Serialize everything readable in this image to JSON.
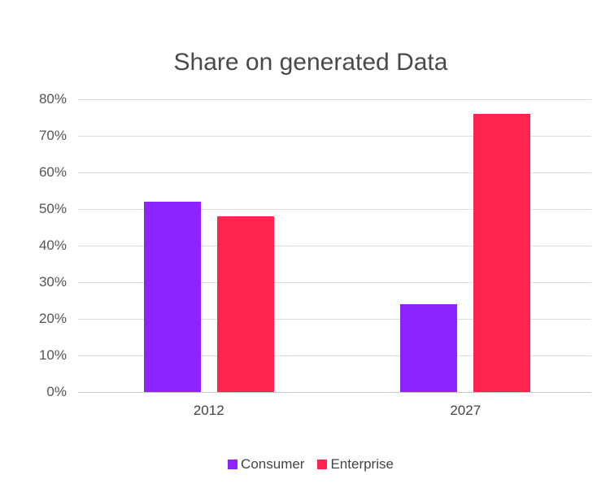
{
  "chart_data": {
    "type": "bar",
    "title": "Share on generated Data",
    "categories": [
      "2012",
      "2027"
    ],
    "series": [
      {
        "name": "Consumer",
        "color": "#8b24ff",
        "values": [
          52,
          24
        ]
      },
      {
        "name": "Enterprise",
        "color": "#ff2350",
        "values": [
          48,
          76
        ]
      }
    ],
    "xlabel": "",
    "ylabel": "",
    "ylim": [
      0,
      80
    ],
    "yticks": [
      "0%",
      "10%",
      "20%",
      "30%",
      "40%",
      "50%",
      "60%",
      "70%",
      "80%"
    ],
    "grid": true,
    "legend_position": "bottom",
    "value_format": "percent"
  }
}
